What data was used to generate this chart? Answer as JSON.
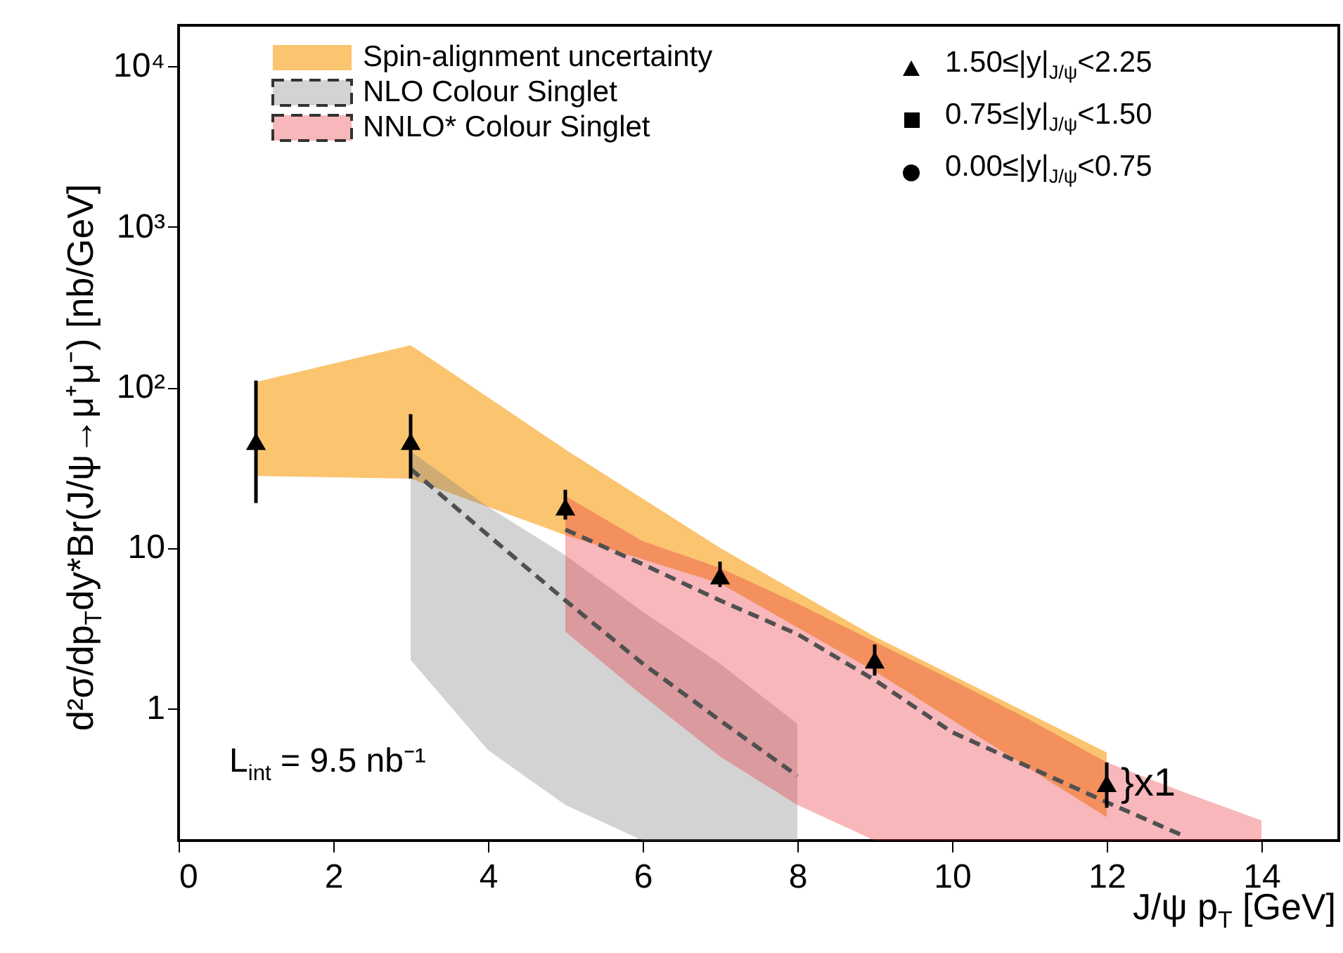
{
  "chart_data": {
    "type": "scatter",
    "xlabel": "J/ψ p$_{T}$ [GeV]",
    "ylabel": "d²σ/dp$_{T}$dy*Br(J/ψ→μ⁺μ⁻) [nb/GeV]",
    "log": "y",
    "xlim": [
      0,
      15
    ],
    "ylim": [
      0.15,
      18000
    ],
    "xticks": [
      0,
      2,
      4,
      6,
      8,
      10,
      12,
      14
    ],
    "yticks": [
      {
        "value": 1,
        "label": "1"
      },
      {
        "value": 10,
        "label": "10"
      },
      {
        "value": 100,
        "label": "10²"
      },
      {
        "value": 1000,
        "label": "10³"
      },
      {
        "value": 10000,
        "label": "10⁴"
      }
    ],
    "grid": false,
    "legend": "top",
    "annotations": [
      "L$_{int}$ = 9.5 nb⁻¹",
      {
        "text": "}x1",
        "x": 12,
        "y": 0.34
      }
    ],
    "series": [
      {
        "name": "Spin-alignment uncertainty",
        "type": "area",
        "color": "#fbc46f",
        "x": [
          1,
          3,
          5,
          7,
          9,
          12
        ],
        "values": [
          null,
          null,
          null,
          null,
          null,
          null
        ],
        "lower": [
          28,
          27,
          12,
          6,
          1.7,
          0.21
        ],
        "upper": [
          108,
          183,
          41,
          10,
          2.8,
          0.53
        ]
      },
      {
        "name": "NLO Colour Singlet",
        "type": "area",
        "color": "#808080",
        "line_style": "dashed",
        "x": [
          3,
          4,
          5,
          6,
          7,
          8
        ],
        "values": [
          null,
          null,
          null,
          null,
          null,
          null
        ],
        "lower": [
          2,
          0.55,
          0.25,
          0.15,
          0.15,
          0.15
        ],
        "upper": [
          40,
          18,
          9,
          4,
          1.9,
          0.8
        ]
      },
      {
        "type": "line",
        "color": "#505050",
        "line_style": "dashed",
        "x": [
          3,
          4,
          5,
          6,
          7,
          8
        ],
        "values": [
          31,
          12,
          4.7,
          1.9,
          0.84,
          0.38
        ]
      },
      {
        "name": "NNLO* Colour Singlet",
        "type": "area",
        "color": "#e8323c",
        "line_style": "dashed",
        "x": [
          5,
          6,
          7,
          8,
          9,
          10,
          11,
          12,
          13,
          14
        ],
        "values": [
          null,
          null,
          null,
          null,
          null,
          null,
          null,
          null,
          null,
          null
        ],
        "lower": [
          3,
          1.2,
          0.5,
          0.25,
          0.15,
          0.15,
          0.15,
          0.15,
          0.15,
          0.15
        ],
        "upper": [
          21,
          11,
          7.5,
          4.5,
          2.6,
          1.5,
          0.85,
          0.46,
          0.3,
          0.2
        ]
      },
      {
        "type": "line",
        "color": "#505050",
        "line_style": "dashed",
        "x": [
          5,
          6,
          7,
          8,
          9,
          10,
          11,
          12,
          13
        ],
        "values": [
          13,
          7.9,
          4.7,
          2.9,
          1.5,
          0.71,
          0.43,
          0.26,
          0.16
        ]
      },
      {
        "name": "1.50≤|y|$_{J/ψ}$<2.25",
        "marker": "triangle",
        "color": "#000000",
        "x": [
          1,
          3,
          5,
          7,
          9,
          12
        ],
        "values": [
          46,
          46,
          18,
          6.7,
          2.0,
          0.34
        ],
        "errors": [
          [
            19,
            110
          ],
          [
            27,
            68
          ],
          [
            15,
            23
          ],
          [
            5.7,
            8.2
          ],
          [
            1.6,
            2.5
          ],
          [
            0.24,
            0.46
          ]
        ]
      },
      {
        "name": "0.75≤|y|$_{J/ψ}$<1.50",
        "marker": "square",
        "color": "#000000"
      },
      {
        "name": "0.00≤|y|$_{J/ψ}$<0.75",
        "marker": "circle",
        "color": "#000000"
      }
    ]
  }
}
